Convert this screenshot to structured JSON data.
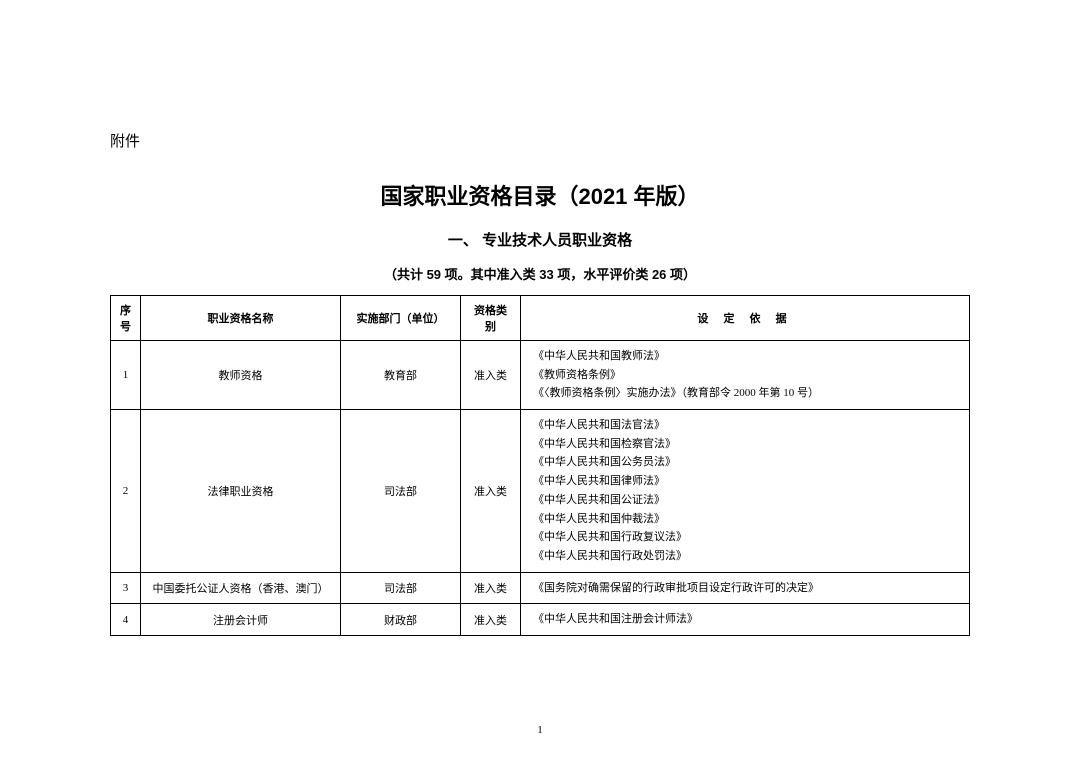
{
  "attachment_label": "附件",
  "main_title": "国家职业资格目录（2021 年版）",
  "section_title": "一、 专业技术人员职业资格",
  "subtitle": "（共计 59 项。其中准入类 33 项，水平评价类 26 项）",
  "headers": {
    "seq": "序号",
    "name": "职业资格名称",
    "dept": "实施部门（单位）",
    "category": "资格类别",
    "basis": "设 定 依 据"
  },
  "rows": [
    {
      "seq": "1",
      "name": "教师资格",
      "dept": "教育部",
      "category": "准入类",
      "basis": [
        "《中华人民共和国教师法》",
        "《教师资格条例》",
        "《〈教师资格条例〉实施办法》（教育部令 2000 年第 10 号）"
      ]
    },
    {
      "seq": "2",
      "name": "法律职业资格",
      "dept": "司法部",
      "category": "准入类",
      "basis": [
        "《中华人民共和国法官法》",
        "《中华人民共和国检察官法》",
        "《中华人民共和国公务员法》",
        "《中华人民共和国律师法》",
        "《中华人民共和国公证法》",
        "《中华人民共和国仲裁法》",
        "《中华人民共和国行政复议法》",
        "《中华人民共和国行政处罚法》"
      ]
    },
    {
      "seq": "3",
      "name": "中国委托公证人资格（香港、澳门）",
      "dept": "司法部",
      "category": "准入类",
      "basis": [
        "《国务院对确需保留的行政审批项目设定行政许可的决定》"
      ]
    },
    {
      "seq": "4",
      "name": "注册会计师",
      "dept": "财政部",
      "category": "准入类",
      "basis": [
        "《中华人民共和国注册会计师法》"
      ]
    }
  ],
  "page_number": "1"
}
